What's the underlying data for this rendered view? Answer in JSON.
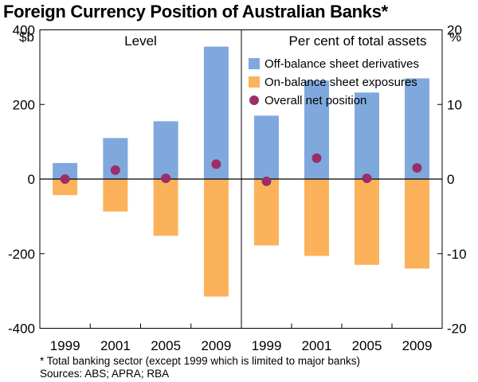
{
  "title": "Foreign Currency Position of Australian Banks*",
  "colors": {
    "off_balance": "#7fa9dd",
    "on_balance": "#fbb25b",
    "net_position": "#9b2e68",
    "axis": "#000000"
  },
  "chart_data": [
    {
      "type": "bar",
      "panel_title": "Level",
      "ylabel": "$b",
      "ylim": [
        -400,
        400
      ],
      "yticks": [
        -400,
        -200,
        0,
        200,
        400
      ],
      "categories": [
        "1999",
        "2001",
        "2005",
        "2009"
      ],
      "series": [
        {
          "name": "Off-balance sheet derivatives",
          "values": [
            43,
            110,
            155,
            355
          ]
        },
        {
          "name": "On-balance sheet exposures",
          "values": [
            -43,
            -87,
            -152,
            -315
          ]
        },
        {
          "name": "Overall net position",
          "values": [
            0,
            24,
            2,
            40
          ]
        }
      ]
    },
    {
      "type": "bar",
      "panel_title": "Per cent of total assets",
      "ylabel": "%",
      "ylim": [
        -20,
        20
      ],
      "yticks": [
        -20,
        -10,
        0,
        10,
        20
      ],
      "categories": [
        "1999",
        "2001",
        "2005",
        "2009"
      ],
      "series": [
        {
          "name": "Off-balance sheet derivatives",
          "values": [
            8.5,
            13.2,
            11.6,
            13.5
          ]
        },
        {
          "name": "On-balance sheet exposures",
          "values": [
            -8.9,
            -10.3,
            -11.5,
            -12
          ]
        },
        {
          "name": "Overall net position",
          "values": [
            -0.3,
            2.8,
            0.1,
            1.5
          ]
        }
      ]
    }
  ],
  "legend": [
    {
      "label": "Off-balance sheet derivatives",
      "kind": "square",
      "color": "#7fa9dd"
    },
    {
      "label": "On-balance sheet exposures",
      "kind": "square",
      "color": "#fbb25b"
    },
    {
      "label": "Overall net position",
      "kind": "dot",
      "color": "#9b2e68"
    }
  ],
  "footnote": "*  Total banking sector (except 1999 which is limited to major banks)",
  "sources": "Sources: ABS; APRA; RBA"
}
